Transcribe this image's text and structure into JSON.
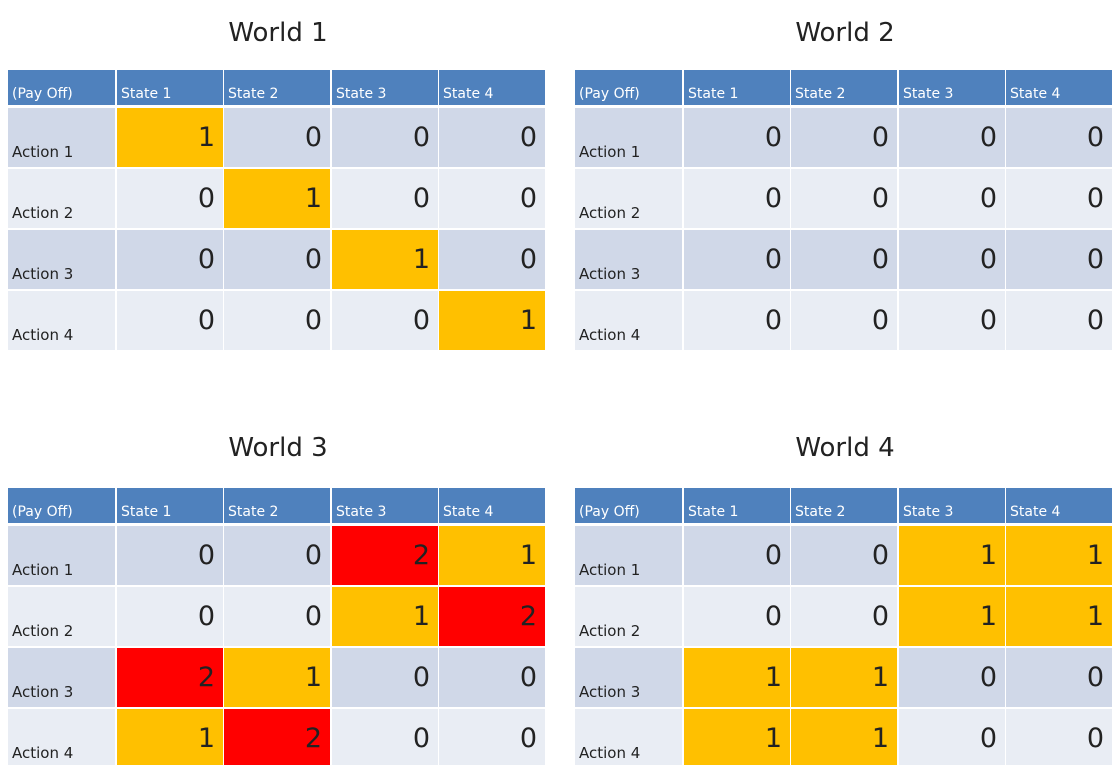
{
  "cell_colors": {
    "1": "#ffc000",
    "2": "#ff0000"
  },
  "worlds": [
    {
      "title": "World 1",
      "header": [
        "(Pay Off)",
        "State 1",
        "State 2",
        "State 3",
        "State 4"
      ],
      "rows": [
        {
          "label": "Action 1",
          "values": [
            1,
            0,
            0,
            0
          ]
        },
        {
          "label": "Action 2",
          "values": [
            0,
            1,
            0,
            0
          ]
        },
        {
          "label": "Action 3",
          "values": [
            0,
            0,
            1,
            0
          ]
        },
        {
          "label": "Action 4",
          "values": [
            0,
            0,
            0,
            1
          ]
        }
      ]
    },
    {
      "title": "World 2",
      "header": [
        "(Pay Off)",
        "State 1",
        "State 2",
        "State 3",
        "State 4"
      ],
      "rows": [
        {
          "label": "Action 1",
          "values": [
            0,
            0,
            0,
            0
          ]
        },
        {
          "label": "Action 2",
          "values": [
            0,
            0,
            0,
            0
          ]
        },
        {
          "label": "Action 3",
          "values": [
            0,
            0,
            0,
            0
          ]
        },
        {
          "label": "Action 4",
          "values": [
            0,
            0,
            0,
            0
          ]
        }
      ]
    },
    {
      "title": "World 3",
      "header": [
        "(Pay Off)",
        "State 1",
        "State 2",
        "State 3",
        "State 4"
      ],
      "rows": [
        {
          "label": "Action 1",
          "values": [
            0,
            0,
            2,
            1
          ]
        },
        {
          "label": "Action 2",
          "values": [
            0,
            0,
            1,
            2
          ]
        },
        {
          "label": "Action 3",
          "values": [
            2,
            1,
            0,
            0
          ]
        },
        {
          "label": "Action 4",
          "values": [
            1,
            2,
            0,
            0
          ]
        }
      ]
    },
    {
      "title": "World 4",
      "header": [
        "(Pay Off)",
        "State 1",
        "State 2",
        "State 3",
        "State 4"
      ],
      "rows": [
        {
          "label": "Action 1",
          "values": [
            0,
            0,
            1,
            1
          ]
        },
        {
          "label": "Action 2",
          "values": [
            0,
            0,
            1,
            1
          ]
        },
        {
          "label": "Action 3",
          "values": [
            1,
            1,
            0,
            0
          ]
        },
        {
          "label": "Action 4",
          "values": [
            1,
            1,
            0,
            0
          ]
        }
      ]
    }
  ]
}
